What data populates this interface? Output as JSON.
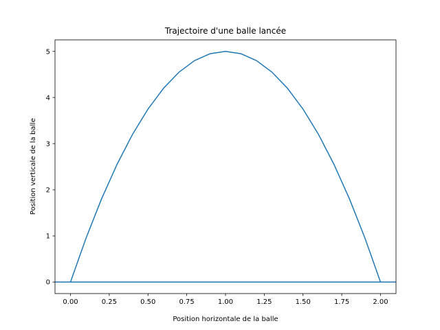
{
  "chart_data": {
    "type": "line",
    "title": "Trajectoire d'une balle lancée",
    "xlabel": "Position horizontale de la balle",
    "ylabel": "Position verticale de la balle",
    "xlim": [
      -0.1,
      2.1
    ],
    "ylim": [
      -0.25,
      5.25
    ],
    "xticks": [
      0.0,
      0.25,
      0.5,
      0.75,
      1.0,
      1.25,
      1.5,
      1.75,
      2.0
    ],
    "xtick_labels": [
      "0.00",
      "0.25",
      "0.50",
      "0.75",
      "1.00",
      "1.25",
      "1.50",
      "1.75",
      "2.00"
    ],
    "yticks": [
      0,
      1,
      2,
      3,
      4,
      5
    ],
    "ytick_labels": [
      "0",
      "1",
      "2",
      "3",
      "4",
      "5"
    ],
    "grid": false,
    "series": [
      {
        "color": "#1f77b4",
        "x": [
          0.0,
          0.1,
          0.2,
          0.3,
          0.4,
          0.5,
          0.6,
          0.7,
          0.8,
          0.9,
          1.0,
          1.1,
          1.2,
          1.3,
          1.4,
          1.5,
          1.6,
          1.7,
          1.8,
          1.9,
          2.0
        ],
        "y": [
          0.0,
          0.95,
          1.8,
          2.55,
          3.2,
          3.75,
          4.2,
          4.55,
          4.8,
          4.95,
          5.0,
          4.95,
          4.8,
          4.55,
          4.2,
          3.75,
          3.2,
          2.55,
          1.8,
          0.95,
          0.0
        ]
      }
    ],
    "hlines": [
      {
        "y": 0,
        "color": "#1f77b4"
      }
    ]
  }
}
